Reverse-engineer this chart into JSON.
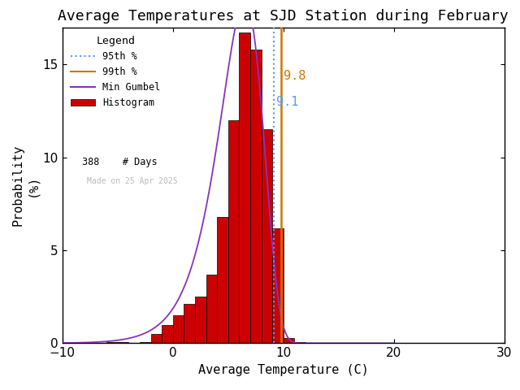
{
  "title": "Average Temperatures at SJD Station during February",
  "xlabel": "Average Temperature (C)",
  "ylabel": "Probability\n(%)",
  "xlim": [
    -10,
    30
  ],
  "ylim": [
    0,
    17
  ],
  "yticks": [
    0,
    5,
    10,
    15
  ],
  "xticks": [
    -10,
    0,
    10,
    20,
    30
  ],
  "bin_edges": [
    -6,
    -5,
    -4,
    -3,
    -2,
    -1,
    0,
    1,
    2,
    3,
    4,
    5,
    6,
    7,
    8,
    9,
    10,
    11,
    12
  ],
  "bar_heights": [
    0.05,
    0.08,
    0.0,
    0.08,
    0.5,
    1.0,
    1.5,
    2.1,
    2.5,
    3.7,
    6.8,
    12.0,
    16.7,
    15.8,
    11.5,
    6.2,
    0.3,
    0.05,
    0.0
  ],
  "bar_color": "#cc0000",
  "bar_edgecolor": "#000000",
  "gumbel_color": "#8833bb",
  "gumbel_mu": 6.5,
  "gumbel_beta": 2.0,
  "p95_color": "#5599ff",
  "p99_color": "#cc7700",
  "p95_value": 9.1,
  "p99_value": 9.8,
  "p95_label": "9.1",
  "p99_label": "9.8",
  "n_days": 388,
  "watermark": "Made on 25 Apr 2025",
  "legend_title": "Legend",
  "background_color": "#ffffff",
  "title_fontsize": 13,
  "axis_fontsize": 11,
  "tick_fontsize": 11
}
